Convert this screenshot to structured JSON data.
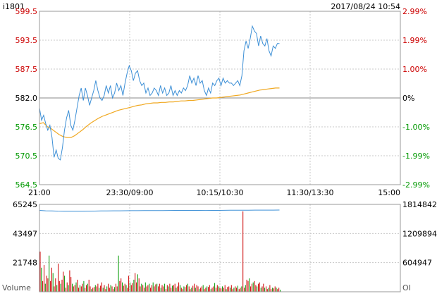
{
  "header": {
    "symbol": "i1801",
    "datetime": "2017/08/24 10:54"
  },
  "colors": {
    "up": "#cc0000",
    "down": "#009900",
    "flat": "#000000",
    "price_line": "#3c8fd6",
    "avg_line": "#f0a820",
    "oi_line": "#3c8fd6",
    "grid": "#c8c8c8",
    "border": "#999999"
  },
  "chart_data": [
    {
      "type": "line",
      "name": "price",
      "y_ticks_left": [
        "599.5",
        "593.5",
        "587.5",
        "582.0",
        "576.5",
        "570.5",
        "564.5"
      ],
      "y_ticks_right": [
        "2.99%",
        "1.99%",
        "1.00%",
        "0%",
        "-1.00%",
        "-1.99%",
        "-2.99%"
      ],
      "x_ticks": [
        "21:00",
        "23:30/09:00",
        "10:15/10:30",
        "11:30/13:30",
        "15:00"
      ],
      "ylim": [
        564.5,
        599.5
      ],
      "reference": 582.0,
      "x_slots": 225,
      "series": [
        {
          "values": [
            580.0,
            577.5,
            578.5,
            576.8,
            575.5,
            576.5,
            574.0,
            570.0,
            571.5,
            569.8,
            569.5,
            572.0,
            575.5,
            578.0,
            579.5,
            576.5,
            575.5,
            577.5,
            580.0,
            582.5,
            584.0,
            581.5,
            584.0,
            582.5,
            580.5,
            582.0,
            583.5,
            585.5,
            583.5,
            582.0,
            581.5,
            582.5,
            584.5,
            583.0,
            584.5,
            582.0,
            583.0,
            585.0,
            583.5,
            584.5,
            582.5,
            585.0,
            587.0,
            588.5,
            587.5,
            585.5,
            587.0,
            587.5,
            585.5,
            584.5,
            585.0,
            583.0,
            584.0,
            582.5,
            583.0,
            584.0,
            583.5,
            582.5,
            584.5,
            583.0,
            584.0,
            582.5,
            583.0,
            584.5,
            582.5,
            583.5,
            582.5,
            583.5,
            583.0,
            584.0,
            583.5,
            584.5,
            586.5,
            585.0,
            586.0,
            584.5,
            586.5,
            585.0,
            585.5,
            583.5,
            582.5,
            584.0,
            583.0,
            585.0,
            584.5,
            585.5,
            586.0,
            584.5,
            586.0,
            585.0,
            585.5,
            585.0,
            585.0,
            584.5,
            585.0,
            585.5,
            584.5,
            586.5,
            591.5,
            593.5,
            592.0,
            594.0,
            596.5,
            595.5,
            595.0,
            592.5,
            594.5,
            593.0,
            592.5,
            594.0,
            591.5,
            590.5,
            592.5,
            592.0,
            593.0,
            593.0
          ]
        },
        {
          "values": [
            576.8,
            577.0,
            576.2,
            575.8,
            575.2,
            574.6,
            574.2,
            574.0,
            574.0,
            574.4,
            575.0,
            575.6,
            576.3,
            576.9,
            577.4,
            577.9,
            578.3,
            578.6,
            578.9,
            579.2,
            579.5,
            579.7,
            579.9,
            580.1,
            580.3,
            580.5,
            580.6,
            580.8,
            580.9,
            581.0,
            581.0,
            581.1,
            581.1,
            581.2,
            581.2,
            581.3,
            581.4,
            581.4,
            581.5,
            581.5,
            581.6,
            581.7,
            581.8,
            581.9,
            582.0,
            582.0,
            582.1,
            582.2,
            582.3,
            582.4,
            582.5,
            582.6,
            582.8,
            583.0,
            583.2,
            583.4,
            583.6,
            583.7,
            583.8,
            583.9,
            584.0,
            584.0
          ]
        }
      ]
    },
    {
      "type": "bar",
      "name": "volume",
      "ylabel": "Volume",
      "y2label": "OI",
      "y_ticks_left": [
        "65245",
        "43497",
        "21748"
      ],
      "y_ticks_right": [
        "1814842",
        "1209894",
        "604947"
      ],
      "ylim": [
        0,
        65245
      ],
      "values": [
        30000,
        18000,
        8000,
        20000,
        6000,
        12000,
        10000,
        27000,
        8000,
        18000,
        14000,
        4000,
        10000,
        5000,
        21000,
        8000,
        6000,
        9000,
        15000,
        12000,
        3000,
        7000,
        5000,
        16000,
        11000,
        6000,
        4000,
        5000,
        7000,
        9000,
        3000,
        5000,
        4000,
        6000,
        8000,
        3000,
        5000,
        6000,
        9000,
        4000,
        2000,
        3000,
        3500,
        5000,
        4000,
        6000,
        3000,
        4500,
        7000,
        3000,
        5000,
        2000,
        4000,
        6000,
        3000,
        5000,
        4000,
        2000,
        3500,
        6000,
        4000,
        27000,
        8000,
        10000,
        7000,
        4500,
        6000,
        5000,
        3000,
        12000,
        7000,
        5000,
        6500,
        9000,
        14000,
        7000,
        13000,
        10000,
        4000,
        6000,
        5000,
        3000,
        7000,
        4000,
        5000,
        6000,
        3000,
        5000,
        7000,
        4000,
        5500,
        6000,
        4000,
        6000,
        3000,
        5000,
        4000,
        6000,
        2000,
        5000,
        4000,
        6000,
        3000,
        4500,
        5000,
        6000,
        3000,
        4000,
        7000,
        5000,
        3000,
        2000,
        4000,
        3500,
        5000,
        6000,
        4000,
        2000,
        3000,
        4500,
        6000,
        3000,
        5000,
        4000,
        2000,
        3000,
        4000,
        5000,
        2000,
        3000,
        4000,
        3500,
        5000,
        2000,
        3000,
        4000,
        6500,
        3000,
        5000,
        4000,
        3000,
        2500,
        4000,
        3000,
        5000,
        2000,
        3500,
        4000,
        3000,
        5000,
        2000,
        3000,
        4000,
        3000,
        4500,
        2000,
        3000,
        4000,
        60000,
        3000,
        5000,
        9000,
        8000,
        10000,
        4000,
        6000,
        7000,
        8000,
        5000,
        4000,
        6000,
        7000,
        3000,
        4000,
        6000,
        3000,
        4000,
        2000,
        3000,
        5000,
        2000,
        3000,
        2500,
        4000,
        3000,
        2000,
        3000,
        1500
      ],
      "oi_values": [
        1690000,
        1682000,
        1678000,
        1675000,
        1673000,
        1672000,
        1672000,
        1673000,
        1674000,
        1676000,
        1678000,
        1680000,
        1681000,
        1682000,
        1683000,
        1684000,
        1685000,
        1686000,
        1687000,
        1687000,
        1688000,
        1689000,
        1690000,
        1691000,
        1691000,
        1690000,
        1690000,
        1689000,
        1690000,
        1691000,
        1692000,
        1693000,
        1694000,
        1694000,
        1695000,
        1696000,
        1696000,
        1697000,
        1697000,
        1698000
      ]
    }
  ]
}
